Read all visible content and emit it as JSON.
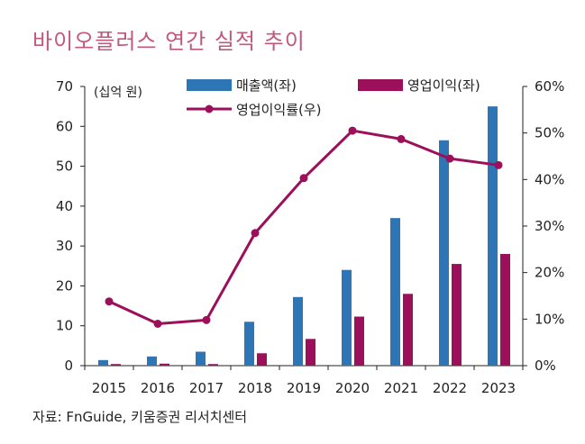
{
  "title": "바이오플러스 연간 실적 추이",
  "source": "자료: FnGuide, 키움증권 리서치센터",
  "chart_data": {
    "type": "bar",
    "categories": [
      "2015",
      "2016",
      "2017",
      "2018",
      "2019",
      "2020",
      "2021",
      "2022",
      "2023"
    ],
    "unit_label": "(십억 원)",
    "ylim_left": [
      0,
      70
    ],
    "yticks_left": [
      "0",
      "10",
      "20",
      "30",
      "40",
      "50",
      "60",
      "70"
    ],
    "ylim_right": [
      0,
      60
    ],
    "yticks_right": [
      "0%",
      "10%",
      "20%",
      "30%",
      "40%",
      "50%",
      "60%"
    ],
    "series": [
      {
        "name": "매출액(좌)",
        "type": "bar",
        "axis": "left",
        "color": "#2e75b6",
        "values": [
          1.4,
          2.3,
          3.5,
          11.0,
          17.2,
          24.0,
          37.0,
          56.5,
          65.0
        ]
      },
      {
        "name": "영업이익(좌)",
        "type": "bar",
        "axis": "left",
        "color": "#9c0f5a",
        "values": [
          0.4,
          0.5,
          0.4,
          3.1,
          6.7,
          12.3,
          18.0,
          25.5,
          28.0
        ]
      },
      {
        "name": "영업이익률(우)",
        "type": "line",
        "axis": "right",
        "color": "#9c0f5a",
        "values": [
          13.8,
          9.0,
          9.8,
          28.5,
          40.3,
          50.5,
          48.7,
          44.5,
          43.1
        ]
      }
    ]
  }
}
